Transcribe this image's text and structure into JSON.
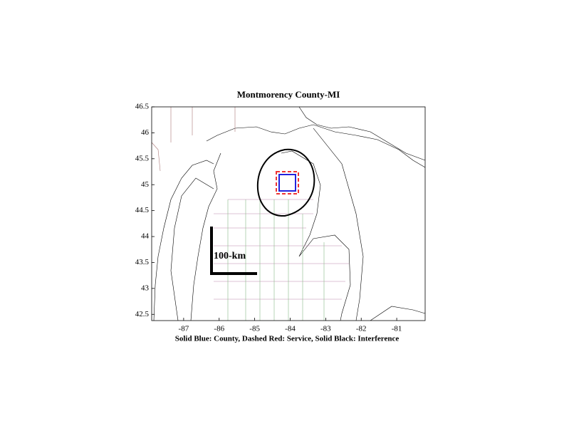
{
  "chart_data": {
    "type": "map",
    "title": "Montmorency County-MI",
    "xlabel": "Solid Blue: County, Dashed Red: Service, Solid Black: Interference",
    "annotation": "100-km",
    "xlim": [
      -87.9,
      -80.2
    ],
    "ylim": [
      42.38,
      46.5
    ],
    "xticks": [
      -87,
      -86,
      -85,
      -84,
      -83,
      -82,
      -81
    ],
    "yticks": [
      42.5,
      43,
      43.5,
      44,
      44.5,
      45,
      45.5,
      46,
      46.5
    ]
  }
}
